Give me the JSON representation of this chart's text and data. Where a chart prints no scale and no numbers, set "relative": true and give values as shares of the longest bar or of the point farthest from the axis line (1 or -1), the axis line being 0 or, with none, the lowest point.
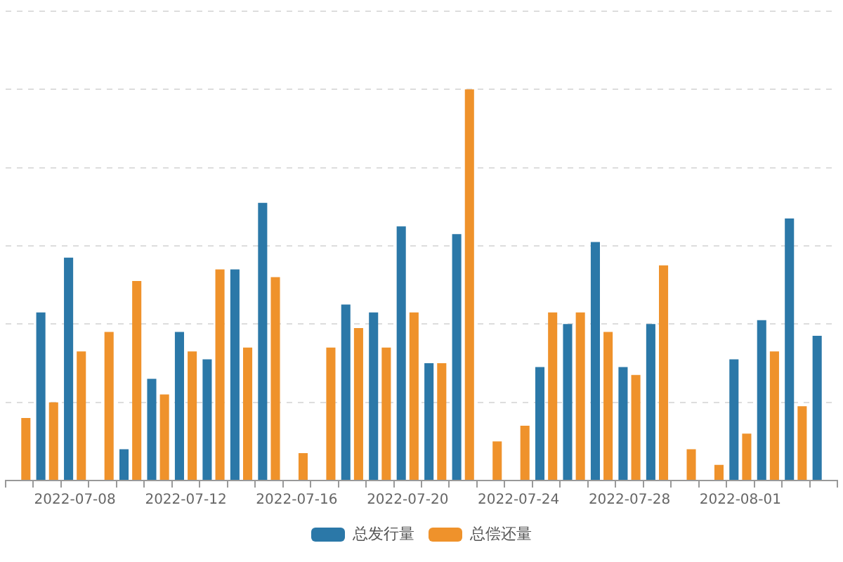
{
  "chart_data": {
    "type": "bar",
    "relative": true,
    "grid": "y",
    "legend": "bottom",
    "categories": [
      null,
      null,
      "2022-07-08",
      null,
      null,
      null,
      "2022-07-12",
      null,
      null,
      null,
      "2022-07-16",
      null,
      null,
      null,
      "2022-07-20",
      null,
      null,
      null,
      "2022-07-24",
      null,
      null,
      null,
      "2022-07-28",
      null,
      null,
      null,
      "2022-08-01",
      null,
      null,
      null
    ],
    "series": [
      {
        "name": "总发行量",
        "color": "#2b78a8",
        "values": [
          null,
          0.43,
          0.57,
          null,
          0.08,
          0.26,
          0.38,
          0.31,
          0.54,
          0.71,
          null,
          null,
          0.45,
          0.43,
          0.65,
          0.3,
          0.63,
          null,
          null,
          0.29,
          0.4,
          0.61,
          0.29,
          0.4,
          null,
          null,
          0.31,
          0.41,
          0.67,
          0.37
        ]
      },
      {
        "name": "总偿还量",
        "color": "#ef922b",
        "values": [
          0.16,
          0.2,
          0.33,
          0.38,
          0.51,
          0.22,
          0.33,
          0.54,
          0.34,
          0.52,
          0.07,
          0.34,
          0.39,
          0.34,
          0.43,
          0.3,
          1,
          0.1,
          0.14,
          0.43,
          0.43,
          0.38,
          0.27,
          0.55,
          0.08,
          0.04,
          0.12,
          0.33,
          0.19,
          null
        ]
      }
    ]
  }
}
